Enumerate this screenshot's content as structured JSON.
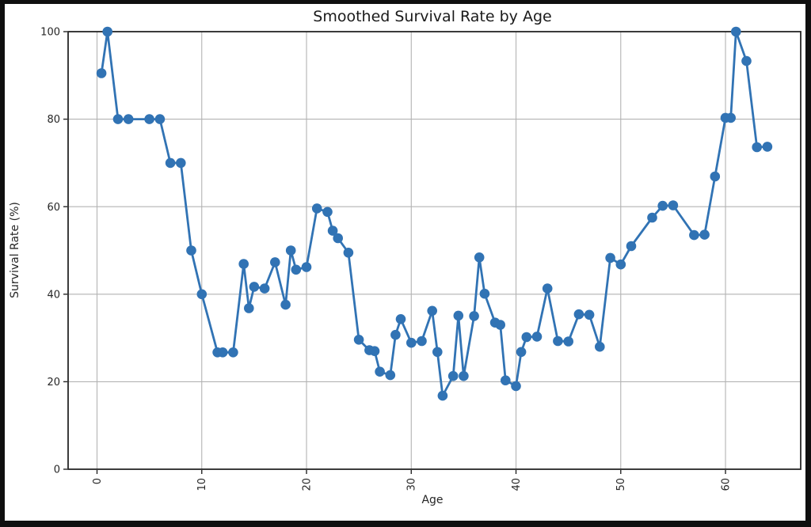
{
  "window": {
    "frame_color": "#0f0f0f",
    "figure_background": "#ffffff"
  },
  "chart_data": {
    "type": "line",
    "title": "Smoothed Survival Rate by Age",
    "xlabel": "Age",
    "ylabel": "Survival Rate (%)",
    "legend": null,
    "grid": true,
    "x_tick_rotation": 90,
    "x_ticks": [
      0,
      10,
      20,
      30,
      40,
      50,
      60
    ],
    "y_ticks": [
      0,
      20,
      40,
      60,
      80,
      100
    ],
    "xlim": [
      -2.76,
      67.18
    ],
    "ylim": [
      0,
      100
    ],
    "line_color": "#3173b4",
    "marker_color": "#3173b4",
    "grid_color": "#b3b3b3",
    "spine_color": "#262626",
    "tick_label_color": "#262626",
    "points": [
      [
        0.42,
        90.5
      ],
      [
        1,
        100
      ],
      [
        2,
        80
      ],
      [
        3,
        80
      ],
      [
        5,
        80
      ],
      [
        6,
        80
      ],
      [
        7,
        70
      ],
      [
        8,
        70
      ],
      [
        9,
        50
      ],
      [
        10,
        40
      ],
      [
        11.5,
        26.7
      ],
      [
        12,
        26.7
      ],
      [
        13,
        26.7
      ],
      [
        14,
        46.9
      ],
      [
        14.5,
        36.8
      ],
      [
        15,
        41.7
      ],
      [
        16,
        41.3
      ],
      [
        17,
        47.3
      ],
      [
        18,
        37.6
      ],
      [
        18.5,
        50
      ],
      [
        19,
        45.6
      ],
      [
        20,
        46.2
      ],
      [
        21,
        59.6
      ],
      [
        22,
        58.8
      ],
      [
        22.5,
        54.5
      ],
      [
        23,
        52.8
      ],
      [
        24,
        49.5
      ],
      [
        25,
        29.6
      ],
      [
        26,
        27.2
      ],
      [
        26.5,
        27
      ],
      [
        27,
        22.3
      ],
      [
        28,
        21.5
      ],
      [
        28.5,
        30.7
      ],
      [
        29,
        34.3
      ],
      [
        30,
        28.9
      ],
      [
        31,
        29.3
      ],
      [
        32,
        36.2
      ],
      [
        32.5,
        26.8
      ],
      [
        33,
        16.8
      ],
      [
        34,
        21.3
      ],
      [
        34.5,
        35.1
      ],
      [
        35,
        21.3
      ],
      [
        36,
        35
      ],
      [
        36.5,
        48.4
      ],
      [
        37,
        40.1
      ],
      [
        38,
        33.5
      ],
      [
        38.5,
        33
      ],
      [
        39,
        20.3
      ],
      [
        40,
        19
      ],
      [
        40.5,
        26.8
      ],
      [
        41,
        30.2
      ],
      [
        42,
        30.3
      ],
      [
        43,
        41.3
      ],
      [
        44,
        29.3
      ],
      [
        45,
        29.2
      ],
      [
        46,
        35.4
      ],
      [
        47,
        35.3
      ],
      [
        48,
        28
      ],
      [
        49,
        48.3
      ],
      [
        50,
        46.8
      ],
      [
        51,
        51
      ],
      [
        53,
        57.5
      ],
      [
        54,
        60.2
      ],
      [
        55,
        60.3
      ],
      [
        57,
        53.5
      ],
      [
        58,
        53.6
      ],
      [
        59,
        66.9
      ],
      [
        60,
        80.3
      ],
      [
        60.5,
        80.3
      ],
      [
        61,
        100
      ],
      [
        62,
        93.3
      ],
      [
        63,
        73.6
      ],
      [
        64,
        73.7
      ]
    ]
  }
}
